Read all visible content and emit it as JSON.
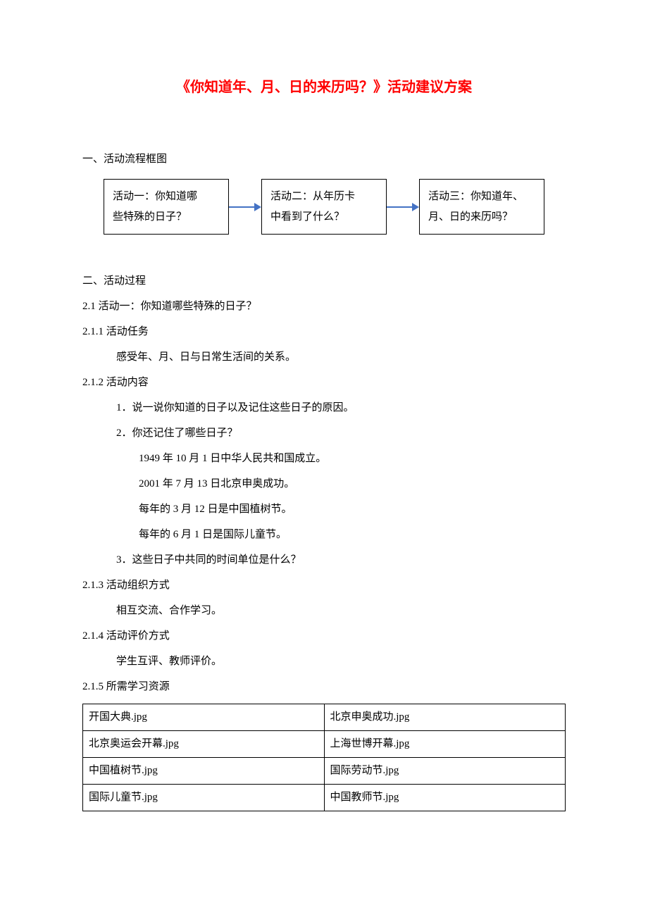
{
  "title": "《你知道年、月、日的来历吗？》活动建议方案",
  "section1_heading": "一、活动流程框图",
  "flowchart": {
    "box1_line1": "活动一：你知道哪",
    "box1_line2": "些特殊的日子？",
    "box2_line1": "活动二：从年历卡",
    "box2_line2": "中看到了什么？",
    "box3_line1": "活动三：你知道年、",
    "box3_line2": "月、日的来历吗？",
    "arrow_color": "#4472c4"
  },
  "section2_heading": "二、活动过程",
  "s2_1": "2.1 活动一：你知道哪些特殊的日子？",
  "s2_1_1_h": "2.1.1 活动任务",
  "s2_1_1_c": "感受年、月、日与日常生活间的关系。",
  "s2_1_2_h": "2.1.2 活动内容",
  "s2_1_2_li1": "1．说一说你知道的日子以及记住这些日子的原因。",
  "s2_1_2_li2": "2．你还记住了哪些日子？",
  "s2_1_2_li2_a": "1949 年 10 月 1 日中华人民共和国成立。",
  "s2_1_2_li2_b": "2001 年 7 月 13 日北京申奥成功。",
  "s2_1_2_li2_c": "每年的 3 月 12 日是中国植树节。",
  "s2_1_2_li2_d": "每年的 6 月 1 日是国际儿童节。",
  "s2_1_2_li3": "3．这些日子中共同的时间单位是什么？",
  "s2_1_3_h": "2.1.3 活动组织方式",
  "s2_1_3_c": "相互交流、合作学习。",
  "s2_1_4_h": "2.1.4 活动评价方式",
  "s2_1_4_c": "学生互评、教师评价。",
  "s2_1_5_h": "2.1.5 所需学习资源",
  "resources": {
    "rows": [
      [
        "开国大典.jpg",
        "北京申奥成功.jpg"
      ],
      [
        "北京奥运会开幕.jpg",
        "上海世博开幕.jpg"
      ],
      [
        "中国植树节.jpg",
        "国际劳动节.jpg"
      ],
      [
        "国际儿童节.jpg",
        "中国教师节.jpg"
      ]
    ]
  }
}
